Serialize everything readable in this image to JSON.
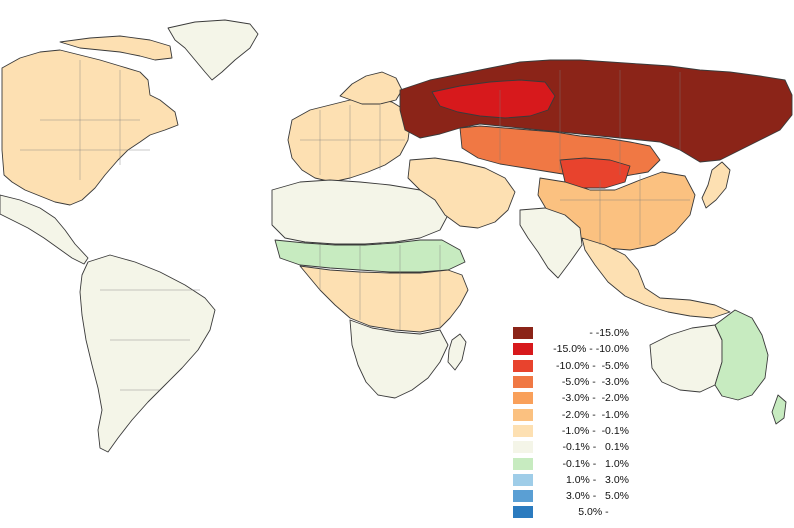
{
  "map": {
    "type": "choropleth",
    "projection": "world"
  },
  "legend": {
    "placement": "bottom-right",
    "classes": [
      {
        "label": "      - -15.0%",
        "color": "#8b2418"
      },
      {
        "label": "-15.0% - -10.0%",
        "color": "#d7191c"
      },
      {
        "label": "-10.0% -  -5.0%",
        "color": "#e8432d"
      },
      {
        "label": " -5.0% -  -3.0%",
        "color": "#f07844"
      },
      {
        "label": " -3.0% -  -2.0%",
        "color": "#f9a05a"
      },
      {
        "label": " -2.0% -  -1.0%",
        "color": "#fbc180"
      },
      {
        "label": " -1.0% -  -0.1%",
        "color": "#fde0b2"
      },
      {
        "label": " -0.1% -   0.1%",
        "color": "#f4f5e8"
      },
      {
        "label": " -0.1% -   1.0%",
        "color": "#c7ebc0"
      },
      {
        "label": "  1.0% -   3.0%",
        "color": "#9fcde8"
      },
      {
        "label": "  3.0% -   5.0%",
        "color": "#5a9fd4"
      },
      {
        "label": "  5.0% -       ",
        "color": "#2b7bbf"
      }
    ]
  },
  "regions": [
    {
      "name": "North America",
      "class": 6
    },
    {
      "name": "Mexico / Central America",
      "class": 7
    },
    {
      "name": "South America",
      "class": 7
    },
    {
      "name": "Greenland",
      "class": 7
    },
    {
      "name": "Europe",
      "class": 6
    },
    {
      "name": "Scandinavia",
      "class": 6
    },
    {
      "name": "North Africa",
      "class": 7
    },
    {
      "name": "Sahel",
      "class": 8
    },
    {
      "name": "Central Africa",
      "class": 6
    },
    {
      "name": "Southern Africa",
      "class": 7
    },
    {
      "name": "Madagascar",
      "class": 7
    },
    {
      "name": "Russia (northern)",
      "class": 0
    },
    {
      "name": "Russia (western)",
      "class": 1
    },
    {
      "name": "Central Asia",
      "class": 3
    },
    {
      "name": "Middle East",
      "class": 6
    },
    {
      "name": "India",
      "class": 7
    },
    {
      "name": "China",
      "class": 5
    },
    {
      "name": "Mongolia",
      "class": 2
    },
    {
      "name": "Japan",
      "class": 6
    },
    {
      "name": "Southeast Asia",
      "class": 6
    },
    {
      "name": "Australia (west)",
      "class": 7
    },
    {
      "name": "Australia (east)",
      "class": 8
    }
  ]
}
